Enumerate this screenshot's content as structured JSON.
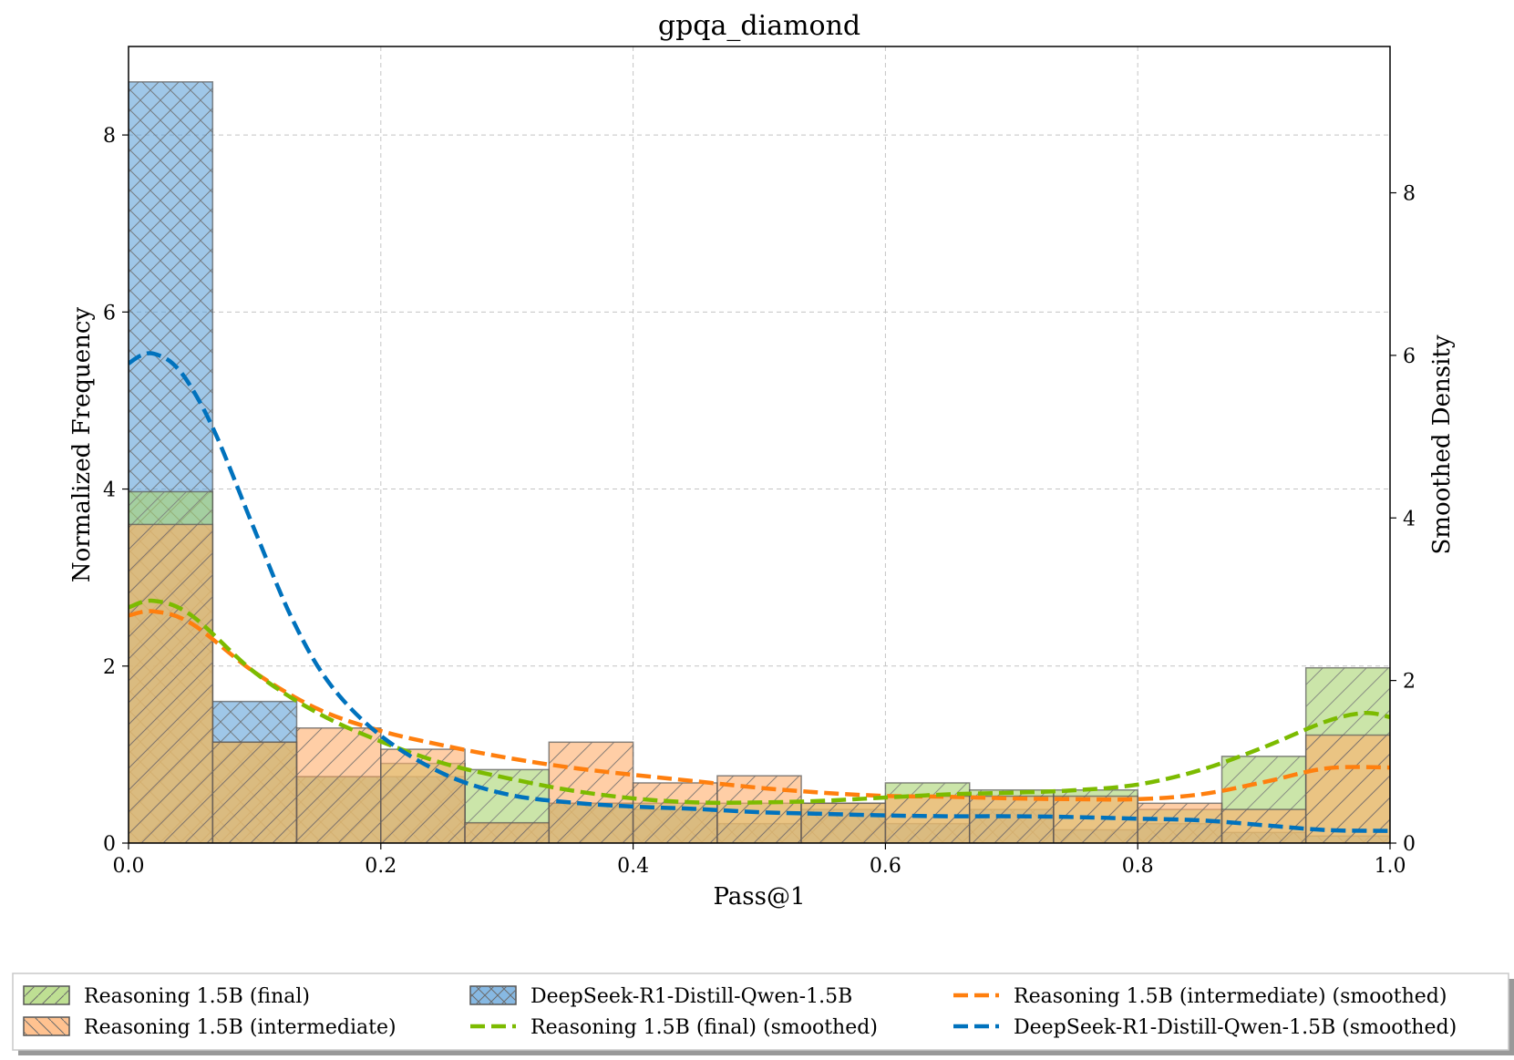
{
  "chart_data": {
    "type": "histogram",
    "title": "gpqa_diamond",
    "xlabel": "Pass@1",
    "ylabel": "Normalized Frequency",
    "y2label": "Smoothed Density",
    "xlim": [
      0.0,
      1.0
    ],
    "ylim": [
      0,
      9.0
    ],
    "y2lim": [
      0,
      9.8
    ],
    "xticks": [
      "0.0",
      "0.2",
      "0.4",
      "0.6",
      "0.8",
      "1.0"
    ],
    "yticks": [
      "0",
      "2",
      "4",
      "6",
      "8"
    ],
    "y2ticks": [
      "0",
      "2",
      "4",
      "6",
      "8"
    ],
    "bin_edges": [
      0.0,
      0.0667,
      0.1333,
      0.2,
      0.2667,
      0.3333,
      0.4,
      0.4667,
      0.5333,
      0.6,
      0.6667,
      0.7333,
      0.8,
      0.8667,
      0.9333,
      1.0
    ],
    "series": [
      {
        "name": "DeepSeek-R1-Distill-Qwen-1.5B",
        "kind": "hist",
        "color": "#5fa2d9",
        "values": [
          8.6,
          1.6,
          0.75,
          0.75,
          0.22,
          0.45,
          0.38,
          0.22,
          0.38,
          0.22,
          0.38,
          0.15,
          0.22,
          0.12,
          0.08
        ]
      },
      {
        "name": "Reasoning 1.5B (final)",
        "kind": "hist",
        "color": "#a8d46f",
        "values": [
          3.97,
          1.14,
          0.75,
          0.9,
          0.83,
          0.45,
          0.45,
          0.45,
          0.45,
          0.68,
          0.6,
          0.6,
          0.38,
          0.98,
          1.98
        ]
      },
      {
        "name": "Reasoning 1.5B (intermediate)",
        "kind": "hist",
        "color": "#ffad6b",
        "values": [
          3.6,
          1.14,
          1.3,
          1.06,
          0.23,
          1.14,
          0.68,
          0.76,
          0.45,
          0.53,
          0.53,
          0.53,
          0.45,
          0.38,
          1.22
        ]
      },
      {
        "name": "Reasoning 1.5B (intermediate) (smoothed)",
        "kind": "kde",
        "color": "#ff7f0e",
        "x": [
          0.0,
          0.02,
          0.05,
          0.1,
          0.15,
          0.2,
          0.25,
          0.3,
          0.35,
          0.4,
          0.45,
          0.5,
          0.55,
          0.6,
          0.65,
          0.7,
          0.75,
          0.8,
          0.85,
          0.9,
          0.95,
          1.0
        ],
        "values": [
          2.8,
          2.85,
          2.7,
          2.1,
          1.65,
          1.38,
          1.2,
          1.05,
          0.93,
          0.84,
          0.76,
          0.68,
          0.62,
          0.58,
          0.57,
          0.55,
          0.54,
          0.54,
          0.6,
          0.75,
          0.92,
          0.93
        ]
      },
      {
        "name": "Reasoning 1.5B (final) (smoothed)",
        "kind": "kde",
        "color": "#7cbb00",
        "x": [
          0.0,
          0.02,
          0.05,
          0.1,
          0.15,
          0.2,
          0.25,
          0.3,
          0.35,
          0.4,
          0.45,
          0.5,
          0.55,
          0.6,
          0.65,
          0.7,
          0.75,
          0.8,
          0.85,
          0.9,
          0.95,
          0.98,
          1.0
        ],
        "values": [
          2.9,
          2.98,
          2.8,
          2.1,
          1.6,
          1.25,
          0.98,
          0.8,
          0.65,
          0.55,
          0.5,
          0.5,
          0.52,
          0.56,
          0.6,
          0.62,
          0.65,
          0.72,
          0.9,
          1.18,
          1.5,
          1.6,
          1.55
        ]
      },
      {
        "name": "DeepSeek-R1-Distill-Qwen-1.5B (smoothed)",
        "kind": "kde",
        "color": "#0072bd",
        "x": [
          0.0,
          0.01,
          0.02,
          0.035,
          0.05,
          0.07,
          0.1,
          0.13,
          0.16,
          0.2,
          0.25,
          0.3,
          0.35,
          0.4,
          0.45,
          0.5,
          0.55,
          0.6,
          0.65,
          0.7,
          0.75,
          0.8,
          0.85,
          0.9,
          0.95,
          1.0
        ],
        "values": [
          5.9,
          6.0,
          6.02,
          5.9,
          5.6,
          5.0,
          3.85,
          2.75,
          1.95,
          1.32,
          0.85,
          0.6,
          0.5,
          0.45,
          0.42,
          0.38,
          0.36,
          0.34,
          0.33,
          0.33,
          0.32,
          0.3,
          0.28,
          0.22,
          0.16,
          0.15
        ]
      }
    ],
    "legend": {
      "placement": "below",
      "entries": [
        {
          "label": "Reasoning 1.5B (final)",
          "kind": "patch",
          "color": "#a8d46f"
        },
        {
          "label": "DeepSeek-R1-Distill-Qwen-1.5B",
          "kind": "patch",
          "color": "#5fa2d9"
        },
        {
          "label": "Reasoning 1.5B (intermediate) (smoothed)",
          "kind": "line",
          "color": "#ff7f0e"
        },
        {
          "label": "Reasoning 1.5B (intermediate)",
          "kind": "patch",
          "color": "#ffad6b"
        },
        {
          "label": "Reasoning 1.5B (final) (smoothed)",
          "kind": "line",
          "color": "#7cbb00"
        },
        {
          "label": "DeepSeek-R1-Distill-Qwen-1.5B (smoothed)",
          "kind": "line",
          "color": "#0072bd"
        }
      ]
    }
  }
}
